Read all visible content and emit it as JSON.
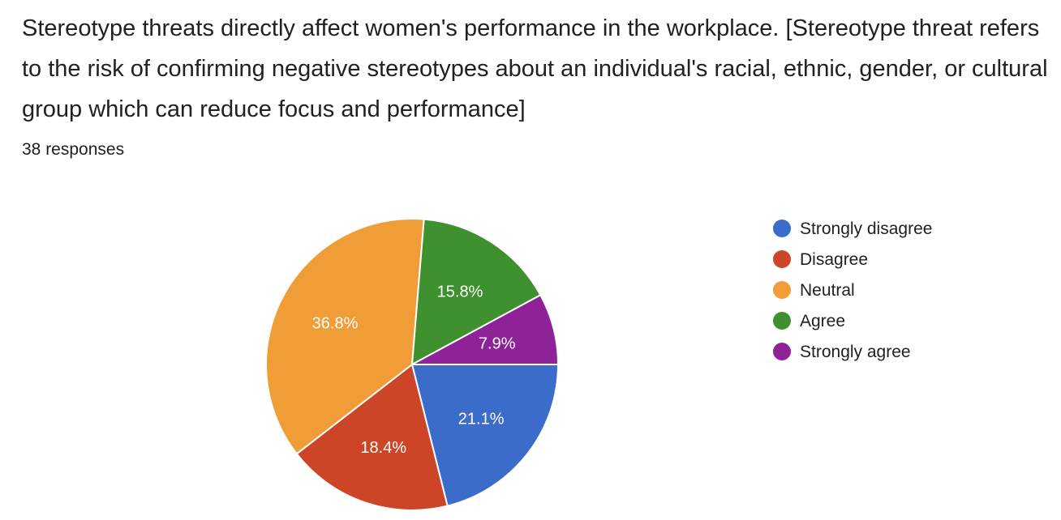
{
  "question": {
    "title": "Stereotype threats directly affect women's performance in the workplace. [Stereotype threat refers to the risk of confirming negative stereotypes about an individual's racial, ethnic, gender, or cultural group which can reduce focus and performance]",
    "responses": "38 responses"
  },
  "chart_data": {
    "type": "pie",
    "legend_position": "right",
    "slices": [
      {
        "name": "Strongly disagree",
        "value": 21.1,
        "label": "21.1%",
        "color": "#3b6cc9"
      },
      {
        "name": "Disagree",
        "value": 18.4,
        "label": "18.4%",
        "color": "#cc4527"
      },
      {
        "name": "Neutral",
        "value": 36.8,
        "label": "36.8%",
        "color": "#f09c37"
      },
      {
        "name": "Agree",
        "value": 15.8,
        "label": "15.8%",
        "color": "#3f9130"
      },
      {
        "name": "Strongly agree",
        "value": 7.9,
        "label": "7.9%",
        "color": "#8d2396"
      }
    ]
  }
}
